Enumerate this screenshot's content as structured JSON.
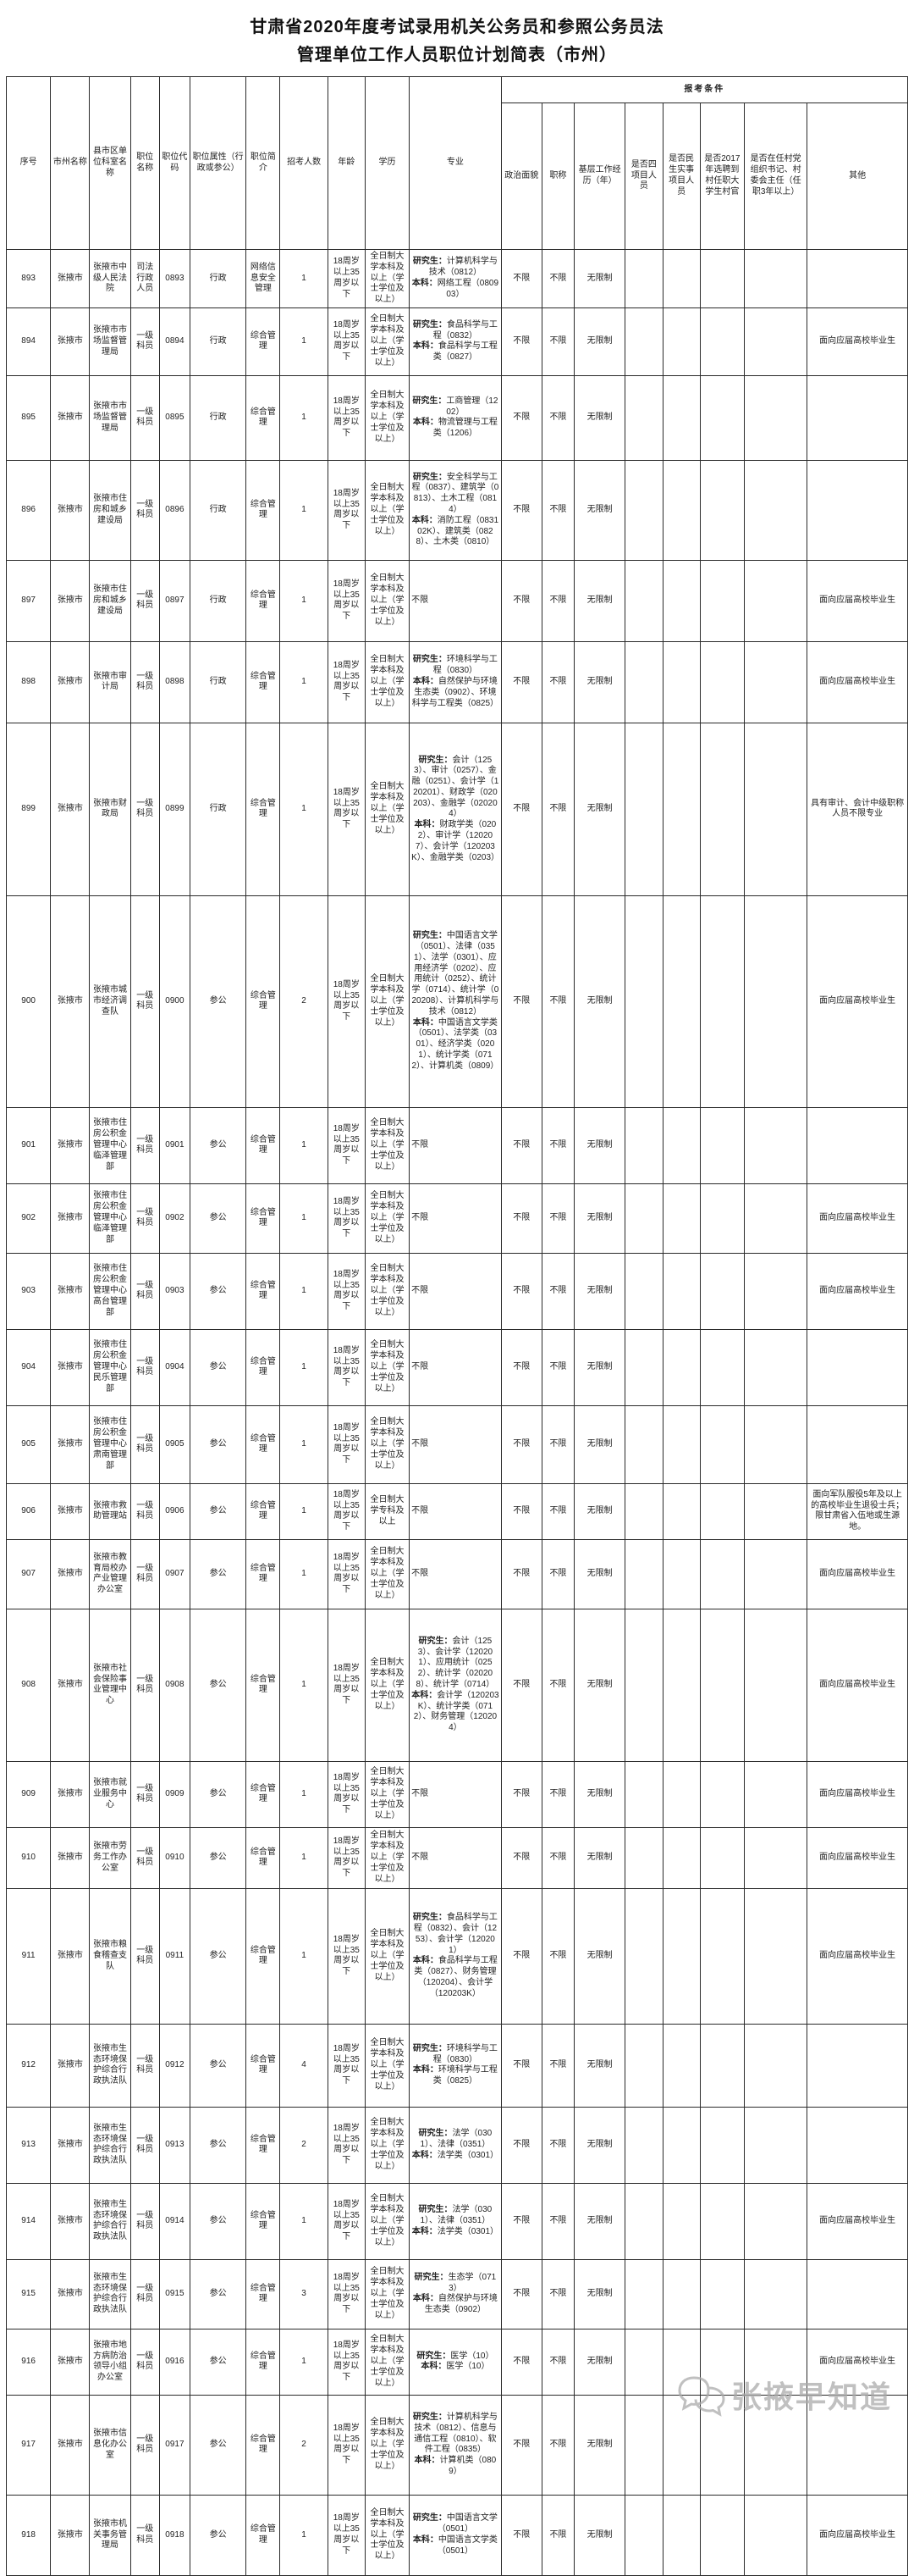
{
  "title": {
    "line1": "甘肃省2020年度考试录用机关公务员和参照公务员法",
    "line2": "管理单位工作人员职位计划简表（市州）"
  },
  "watermark": {
    "icon": "speech-bubbles-icon",
    "text": "张掖早知道"
  },
  "table": {
    "condition_group_header": "报考条件",
    "columns": [
      {
        "id": "no",
        "label": "序号"
      },
      {
        "id": "city",
        "label": "市州名称"
      },
      {
        "id": "unit",
        "label": "县市区单位科室名称"
      },
      {
        "id": "post",
        "label": "职位名称"
      },
      {
        "id": "code",
        "label": "职位代码"
      },
      {
        "id": "attr",
        "label": "职位属性（行政或参公）"
      },
      {
        "id": "brief",
        "label": "职位简介"
      },
      {
        "id": "count",
        "label": "招考人数"
      },
      {
        "id": "age",
        "label": "年龄"
      },
      {
        "id": "edu",
        "label": "学历"
      },
      {
        "id": "major",
        "label": "专业"
      },
      {
        "id": "political",
        "label": "政治面貌"
      },
      {
        "id": "prof",
        "label": "职称"
      },
      {
        "id": "grassroots",
        "label": "基层工作经历（年）"
      },
      {
        "id": "four",
        "label": "是否四项目人员"
      },
      {
        "id": "minsheng",
        "label": "是否民生实事项目人员"
      },
      {
        "id": "y2017",
        "label": "是否2017年选聘到村任职大学生村官"
      },
      {
        "id": "village",
        "label": "是否在任村党组织书记、村委会主任（任职3年以上）"
      },
      {
        "id": "other",
        "label": "其他"
      }
    ],
    "rows": [
      {
        "no": "893",
        "city": "张掖市",
        "unit": "张掖市中级人民法院",
        "post": "司法行政人员",
        "code": "0893",
        "attr": "行政",
        "brief": "网络信息安全管理",
        "count": "1",
        "age": "18周岁以上35周岁以下",
        "edu": "全日制大学本科及以上（学士学位及以上）",
        "major": "研究生：计算机科学与技术（0812）\n本科：网络工程（080903）",
        "political": "不限",
        "prof": "不限",
        "grassroots": "无限制",
        "four": "",
        "minsheng": "",
        "y2017": "",
        "village": "",
        "other": ""
      },
      {
        "no": "894",
        "city": "张掖市",
        "unit": "张掖市市场监督管理局",
        "post": "一级科员",
        "code": "0894",
        "attr": "行政",
        "brief": "综合管理",
        "count": "1",
        "age": "18周岁以上35周岁以下",
        "edu": "全日制大学本科及以上（学士学位及以上）",
        "major": "研究生：食品科学与工程（0832）\n本科：食品科学与工程类（0827）",
        "political": "不限",
        "prof": "不限",
        "grassroots": "无限制",
        "four": "",
        "minsheng": "",
        "y2017": "",
        "village": "",
        "other": "面向应届高校毕业生"
      },
      {
        "no": "895",
        "city": "张掖市",
        "unit": "张掖市市场监督管理局",
        "post": "一级科员",
        "code": "0895",
        "attr": "行政",
        "brief": "综合管理",
        "count": "1",
        "age": "18周岁以上35周岁以下",
        "edu": "全日制大学本科及以上（学士学位及以上）",
        "major": "研究生：工商管理（1202）\n本科：物流管理与工程类（1206）",
        "political": "不限",
        "prof": "不限",
        "grassroots": "无限制",
        "four": "",
        "minsheng": "",
        "y2017": "",
        "village": "",
        "other": ""
      },
      {
        "no": "896",
        "city": "张掖市",
        "unit": "张掖市住房和城乡建设局",
        "post": "一级科员",
        "code": "0896",
        "attr": "行政",
        "brief": "综合管理",
        "count": "1",
        "age": "18周岁以上35周岁以下",
        "edu": "全日制大学本科及以上（学士学位及以上）",
        "major": "研究生：安全科学与工程（0837）、建筑学（0813）、土木工程（0814）\n本科：消防工程（083102K）、建筑类（0828）、土木类（0810）",
        "political": "不限",
        "prof": "不限",
        "grassroots": "无限制",
        "four": "",
        "minsheng": "",
        "y2017": "",
        "village": "",
        "other": ""
      },
      {
        "no": "897",
        "city": "张掖市",
        "unit": "张掖市住房和城乡建设局",
        "post": "一级科员",
        "code": "0897",
        "attr": "行政",
        "brief": "综合管理",
        "count": "1",
        "age": "18周岁以上35周岁以下",
        "edu": "全日制大学本科及以上（学士学位及以上）",
        "major": "不限",
        "political": "不限",
        "prof": "不限",
        "grassroots": "无限制",
        "four": "",
        "minsheng": "",
        "y2017": "",
        "village": "",
        "other": "面向应届高校毕业生"
      },
      {
        "no": "898",
        "city": "张掖市",
        "unit": "张掖市审计局",
        "post": "一级科员",
        "code": "0898",
        "attr": "行政",
        "brief": "综合管理",
        "count": "1",
        "age": "18周岁以上35周岁以下",
        "edu": "全日制大学本科及以上（学士学位及以上）",
        "major": "研究生：环境科学与工程（0830）\n本科：自然保护与环境生态类（0902）、环境科学与工程类（0825）",
        "political": "不限",
        "prof": "不限",
        "grassroots": "无限制",
        "four": "",
        "minsheng": "",
        "y2017": "",
        "village": "",
        "other": "面向应届高校毕业生"
      },
      {
        "no": "899",
        "city": "张掖市",
        "unit": "张掖市财政局",
        "post": "一级科员",
        "code": "0899",
        "attr": "行政",
        "brief": "综合管理",
        "count": "1",
        "age": "18周岁以上35周岁以下",
        "edu": "全日制大学本科及以上（学士学位及以上）",
        "major": "研究生：会计（1253）、审计（0257）、金融（0251）、会计学（120201）、财政学（020203）、金融学（020204）\n本科：财政学类（0202）、审计学（120207）、会计学（120203K）、金融学类（0203）",
        "political": "不限",
        "prof": "不限",
        "grassroots": "无限制",
        "four": "",
        "minsheng": "",
        "y2017": "",
        "village": "",
        "other": "具有审计、会计中级职称人员不限专业"
      },
      {
        "no": "900",
        "city": "张掖市",
        "unit": "张掖市城市经济调查队",
        "post": "一级科员",
        "code": "0900",
        "attr": "参公",
        "brief": "综合管理",
        "count": "2",
        "age": "18周岁以上35周岁以下",
        "edu": "全日制大学本科及以上（学士学位及以上）",
        "major": "研究生：中国语言文学（0501）、法律（0351）、法学（0301）、应用经济学（0202）、应用统计（0252）、统计学（0714）、统计学（020208）、计算机科学与技术（0812）\n本科：中国语言文学类（0501）、法学类（0301）、经济学类（0201）、统计学类（0712）、计算机类（0809）",
        "political": "不限",
        "prof": "不限",
        "grassroots": "无限制",
        "four": "",
        "minsheng": "",
        "y2017": "",
        "village": "",
        "other": "面向应届高校毕业生"
      },
      {
        "no": "901",
        "city": "张掖市",
        "unit": "张掖市住房公积金管理中心临泽管理部",
        "post": "一级科员",
        "code": "0901",
        "attr": "参公",
        "brief": "综合管理",
        "count": "1",
        "age": "18周岁以上35周岁以下",
        "edu": "全日制大学本科及以上（学士学位及以上）",
        "major": "不限",
        "political": "不限",
        "prof": "不限",
        "grassroots": "无限制",
        "four": "",
        "minsheng": "",
        "y2017": "",
        "village": "",
        "other": ""
      },
      {
        "no": "902",
        "city": "张掖市",
        "unit": "张掖市住房公积金管理中心临泽管理部",
        "post": "一级科员",
        "code": "0902",
        "attr": "参公",
        "brief": "综合管理",
        "count": "1",
        "age": "18周岁以上35周岁以下",
        "edu": "全日制大学本科及以上（学士学位及以上）",
        "major": "不限",
        "political": "不限",
        "prof": "不限",
        "grassroots": "无限制",
        "four": "",
        "minsheng": "",
        "y2017": "",
        "village": "",
        "other": "面向应届高校毕业生"
      },
      {
        "no": "903",
        "city": "张掖市",
        "unit": "张掖市住房公积金管理中心高台管理部",
        "post": "一级科员",
        "code": "0903",
        "attr": "参公",
        "brief": "综合管理",
        "count": "1",
        "age": "18周岁以上35周岁以下",
        "edu": "全日制大学本科及以上（学士学位及以上）",
        "major": "不限",
        "political": "不限",
        "prof": "不限",
        "grassroots": "无限制",
        "four": "",
        "minsheng": "",
        "y2017": "",
        "village": "",
        "other": "面向应届高校毕业生"
      },
      {
        "no": "904",
        "city": "张掖市",
        "unit": "张掖市住房公积金管理中心民乐管理部",
        "post": "一级科员",
        "code": "0904",
        "attr": "参公",
        "brief": "综合管理",
        "count": "1",
        "age": "18周岁以上35周岁以下",
        "edu": "全日制大学本科及以上（学士学位及以上）",
        "major": "不限",
        "political": "不限",
        "prof": "不限",
        "grassroots": "无限制",
        "four": "",
        "minsheng": "",
        "y2017": "",
        "village": "",
        "other": ""
      },
      {
        "no": "905",
        "city": "张掖市",
        "unit": "张掖市住房公积金管理中心肃南管理部",
        "post": "一级科员",
        "code": "0905",
        "attr": "参公",
        "brief": "综合管理",
        "count": "1",
        "age": "18周岁以上35周岁以下",
        "edu": "全日制大学本科及以上（学士学位及以上）",
        "major": "不限",
        "political": "不限",
        "prof": "不限",
        "grassroots": "无限制",
        "four": "",
        "minsheng": "",
        "y2017": "",
        "village": "",
        "other": ""
      },
      {
        "no": "906",
        "city": "张掖市",
        "unit": "张掖市救助管理站",
        "post": "一级科员",
        "code": "0906",
        "attr": "参公",
        "brief": "综合管理",
        "count": "1",
        "age": "18周岁以上35周岁以下",
        "edu": "全日制大学专科及以上",
        "major": "不限",
        "political": "不限",
        "prof": "不限",
        "grassroots": "无限制",
        "four": "",
        "minsheng": "",
        "y2017": "",
        "village": "",
        "other": "面向军队服役5年及以上的高校毕业生退役士兵；限甘肃省入伍地或生源地。"
      },
      {
        "no": "907",
        "city": "张掖市",
        "unit": "张掖市教育局校办产业管理办公室",
        "post": "一级科员",
        "code": "0907",
        "attr": "参公",
        "brief": "综合管理",
        "count": "1",
        "age": "18周岁以上35周岁以下",
        "edu": "全日制大学本科及以上（学士学位及以上）",
        "major": "不限",
        "political": "不限",
        "prof": "不限",
        "grassroots": "无限制",
        "four": "",
        "minsheng": "",
        "y2017": "",
        "village": "",
        "other": "面向应届高校毕业生"
      },
      {
        "no": "908",
        "city": "张掖市",
        "unit": "张掖市社会保险事业管理中心",
        "post": "一级科员",
        "code": "0908",
        "attr": "参公",
        "brief": "综合管理",
        "count": "1",
        "age": "18周岁以上35周岁以下",
        "edu": "全日制大学本科及以上（学士学位及以上）",
        "major": "研究生：会计（1253）、会计学（120201）、应用统计（0252）、统计学（020208）、统计学（0714）\n本科：会计学（120203K）、统计学类（0712）、财务管理（120204）",
        "political": "不限",
        "prof": "不限",
        "grassroots": "无限制",
        "four": "",
        "minsheng": "",
        "y2017": "",
        "village": "",
        "other": "面向应届高校毕业生"
      },
      {
        "no": "909",
        "city": "张掖市",
        "unit": "张掖市就业服务中心",
        "post": "一级科员",
        "code": "0909",
        "attr": "参公",
        "brief": "综合管理",
        "count": "1",
        "age": "18周岁以上35周岁以下",
        "edu": "全日制大学本科及以上（学士学位及以上）",
        "major": "不限",
        "political": "不限",
        "prof": "不限",
        "grassroots": "无限制",
        "four": "",
        "minsheng": "",
        "y2017": "",
        "village": "",
        "other": "面向应届高校毕业生"
      },
      {
        "no": "910",
        "city": "张掖市",
        "unit": "张掖市劳务工作办公室",
        "post": "一级科员",
        "code": "0910",
        "attr": "参公",
        "brief": "综合管理",
        "count": "1",
        "age": "18周岁以上35周岁以下",
        "edu": "全日制大学本科及以上（学士学位及以上）",
        "major": "不限",
        "political": "不限",
        "prof": "不限",
        "grassroots": "无限制",
        "four": "",
        "minsheng": "",
        "y2017": "",
        "village": "",
        "other": "面向应届高校毕业生"
      },
      {
        "no": "911",
        "city": "张掖市",
        "unit": "张掖市粮食稽查支队",
        "post": "一级科员",
        "code": "0911",
        "attr": "参公",
        "brief": "综合管理",
        "count": "1",
        "age": "18周岁以上35周岁以下",
        "edu": "全日制大学本科及以上（学士学位及以上）",
        "major": "研究生：食品科学与工程（0832）、会计（1253）、会计学（120201）\n本科：食品科学与工程类（0827）、财务管理（120204）、会计学（120203K）",
        "political": "不限",
        "prof": "不限",
        "grassroots": "无限制",
        "four": "",
        "minsheng": "",
        "y2017": "",
        "village": "",
        "other": "面向应届高校毕业生"
      },
      {
        "no": "912",
        "city": "张掖市",
        "unit": "张掖市生态环境保护综合行政执法队",
        "post": "一级科员",
        "code": "0912",
        "attr": "参公",
        "brief": "综合管理",
        "count": "4",
        "age": "18周岁以上35周岁以下",
        "edu": "全日制大学本科及以上（学士学位及以上）",
        "major": "研究生：环境科学与工程（0830）\n本科：环境科学与工程类（0825）",
        "political": "不限",
        "prof": "不限",
        "grassroots": "无限制",
        "four": "",
        "minsheng": "",
        "y2017": "",
        "village": "",
        "other": ""
      },
      {
        "no": "913",
        "city": "张掖市",
        "unit": "张掖市生态环境保护综合行政执法队",
        "post": "一级科员",
        "code": "0913",
        "attr": "参公",
        "brief": "综合管理",
        "count": "2",
        "age": "18周岁以上35周岁以下",
        "edu": "全日制大学本科及以上（学士学位及以上）",
        "major": "研究生：法学（0301）、法律（0351）\n本科：法学类（0301）",
        "political": "不限",
        "prof": "不限",
        "grassroots": "无限制",
        "four": "",
        "minsheng": "",
        "y2017": "",
        "village": "",
        "other": ""
      },
      {
        "no": "914",
        "city": "张掖市",
        "unit": "张掖市生态环境保护综合行政执法队",
        "post": "一级科员",
        "code": "0914",
        "attr": "参公",
        "brief": "综合管理",
        "count": "1",
        "age": "18周岁以上35周岁以下",
        "edu": "全日制大学本科及以上（学士学位及以上）",
        "major": "研究生：法学（0301）、法律（0351）\n本科：法学类（0301）",
        "political": "不限",
        "prof": "不限",
        "grassroots": "无限制",
        "four": "",
        "minsheng": "",
        "y2017": "",
        "village": "",
        "other": "面向应届高校毕业生"
      },
      {
        "no": "915",
        "city": "张掖市",
        "unit": "张掖市生态环境保护综合行政执法队",
        "post": "一级科员",
        "code": "0915",
        "attr": "参公",
        "brief": "综合管理",
        "count": "3",
        "age": "18周岁以上35周岁以下",
        "edu": "全日制大学本科及以上（学士学位及以上）",
        "major": "研究生：生态学（0713）\n本科：自然保护与环境生态类（0902）",
        "political": "不限",
        "prof": "不限",
        "grassroots": "无限制",
        "four": "",
        "minsheng": "",
        "y2017": "",
        "village": "",
        "other": ""
      },
      {
        "no": "916",
        "city": "张掖市",
        "unit": "张掖市地方病防治领导小组办公室",
        "post": "一级科员",
        "code": "0916",
        "attr": "参公",
        "brief": "综合管理",
        "count": "1",
        "age": "18周岁以上35周岁以下",
        "edu": "全日制大学本科及以上（学士学位及以上）",
        "major": "研究生：医学（10）\n本科：医学（10）",
        "political": "不限",
        "prof": "不限",
        "grassroots": "无限制",
        "four": "",
        "minsheng": "",
        "y2017": "",
        "village": "",
        "other": "面向应届高校毕业生"
      },
      {
        "no": "917",
        "city": "张掖市",
        "unit": "张掖市信息化办公室",
        "post": "一级科员",
        "code": "0917",
        "attr": "参公",
        "brief": "综合管理",
        "count": "2",
        "age": "18周岁以上35周岁以下",
        "edu": "全日制大学本科及以上（学士学位及以上）",
        "major": "研究生：计算机科学与技术（0812）、信息与通信工程（0810）、软件工程（0835）\n本科：计算机类（0809）",
        "political": "不限",
        "prof": "不限",
        "grassroots": "无限制",
        "four": "",
        "minsheng": "",
        "y2017": "",
        "village": "",
        "other": ""
      },
      {
        "no": "918",
        "city": "张掖市",
        "unit": "张掖市机关事务管理局",
        "post": "一级科员",
        "code": "0918",
        "attr": "参公",
        "brief": "综合管理",
        "count": "1",
        "age": "18周岁以上35周岁以下",
        "edu": "全日制大学本科及以上（学士学位及以上）",
        "major": "研究生：中国语言文学（0501）\n本科：中国语言文学类（0501）",
        "political": "不限",
        "prof": "不限",
        "grassroots": "无限制",
        "four": "",
        "minsheng": "",
        "y2017": "",
        "village": "",
        "other": "面向应届高校毕业生"
      }
    ]
  }
}
